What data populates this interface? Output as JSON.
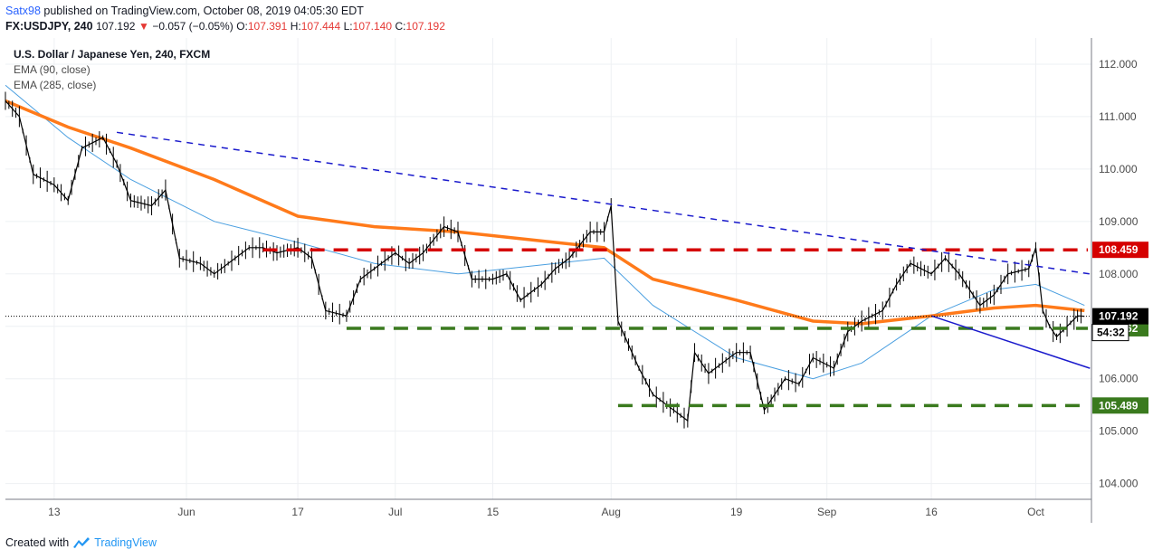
{
  "header": {
    "user": "Satx98",
    "published_text": "published on TradingView.com, October 08, 2019 04:05:30 EDT",
    "symbol": "FX:USDJPY, 240",
    "price": "107.192",
    "change": "−0.057 (−0.05%)",
    "o_label": "O:",
    "o_value": "107.391",
    "h_label": "H:",
    "h_value": "107.444",
    "l_label": "L:",
    "l_value": "107.140",
    "c_label": "C:",
    "c_value": "107.192"
  },
  "legend": {
    "instrument": "U.S. Dollar / Japanese Yen, 240, FXCM",
    "ema1": "EMA (90, close)",
    "ema2": "EMA (285, close)"
  },
  "footer": {
    "created_with": "Created with",
    "brand": "TradingView"
  },
  "colors": {
    "ema90": "#4a9fe0",
    "ema285": "#ff7a1a",
    "resistance": "#d50000",
    "support": "#3a7a1e",
    "trendline": "#1a1acc",
    "candle": "#000000"
  },
  "chart_data": {
    "type": "line",
    "title": "U.S. Dollar / Japanese Yen, 240, FXCM",
    "ylim": [
      103.7,
      112.5
    ],
    "y_ticks": [
      "112.000",
      "111.000",
      "110.000",
      "109.000",
      "108.000",
      "107.000",
      "106.000",
      "105.000",
      "104.000"
    ],
    "x_ticks": [
      "13",
      "Jun",
      "17",
      "Jul",
      "15",
      "Aug",
      "19",
      "Sep",
      "16",
      "Oct"
    ],
    "price_series": {
      "name": "FX:USDJPY, 240",
      "x": [
        "May 06",
        "May 08",
        "May 10",
        "May 13",
        "May 15",
        "May 17",
        "May 20",
        "May 22",
        "May 24",
        "May 27",
        "May 29",
        "May 31",
        "Jun 03",
        "Jun 05",
        "Jun 07",
        "Jun 10",
        "Jun 12",
        "Jun 14",
        "Jun 17",
        "Jun 19",
        "Jun 21",
        "Jun 24",
        "Jun 26",
        "Jun 28",
        "Jul 01",
        "Jul 03",
        "Jul 05",
        "Jul 08",
        "Jul 10",
        "Jul 12",
        "Jul 15",
        "Jul 17",
        "Jul 19",
        "Jul 22",
        "Jul 24",
        "Jul 26",
        "Jul 29",
        "Jul 31",
        "Aug 01",
        "Aug 02",
        "Aug 05",
        "Aug 07",
        "Aug 09",
        "Aug 12",
        "Aug 13",
        "Aug 15",
        "Aug 19",
        "Aug 21",
        "Aug 23",
        "Aug 26",
        "Aug 28",
        "Aug 30",
        "Sep 02",
        "Sep 04",
        "Sep 06",
        "Sep 09",
        "Sep 11",
        "Sep 13",
        "Sep 16",
        "Sep 18",
        "Sep 20",
        "Sep 23",
        "Sep 25",
        "Sep 27",
        "Sep 30",
        "Oct 01",
        "Oct 02",
        "Oct 03",
        "Oct 04",
        "Oct 07",
        "Oct 08"
      ],
      "values": [
        111.3,
        111.0,
        109.9,
        109.7,
        109.4,
        110.4,
        110.6,
        110.1,
        109.4,
        109.3,
        109.6,
        108.3,
        108.2,
        108.0,
        108.2,
        108.5,
        108.5,
        108.4,
        108.5,
        108.3,
        107.3,
        107.2,
        107.9,
        108.1,
        108.4,
        108.2,
        108.4,
        108.9,
        108.8,
        107.9,
        107.9,
        108.0,
        107.5,
        107.8,
        108.1,
        108.3,
        108.8,
        108.8,
        109.3,
        107.1,
        106.2,
        105.7,
        105.5,
        105.2,
        106.5,
        106.1,
        106.5,
        106.5,
        105.4,
        106.0,
        105.9,
        106.4,
        106.2,
        106.9,
        107.1,
        107.3,
        107.8,
        108.2,
        108.0,
        108.3,
        108.0,
        107.4,
        107.6,
        108.0,
        108.1,
        108.5,
        107.3,
        107.0,
        106.8,
        107.2,
        107.192
      ]
    },
    "ema90_series": {
      "name": "EMA (90, close)",
      "x": [
        "May 06",
        "May 15",
        "May 24",
        "Jun 05",
        "Jun 17",
        "Jun 28",
        "Jul 10",
        "Jul 24",
        "Jul 31",
        "Aug 07",
        "Aug 19",
        "Aug 30",
        "Sep 06",
        "Sep 16",
        "Sep 25",
        "Oct 01",
        "Oct 08"
      ],
      "values": [
        111.6,
        110.6,
        109.8,
        109.0,
        108.6,
        108.2,
        108.0,
        108.2,
        108.3,
        107.4,
        106.4,
        106.0,
        106.3,
        107.2,
        107.7,
        107.8,
        107.4
      ]
    },
    "ema285_series": {
      "name": "EMA (285, close)",
      "x": [
        "May 06",
        "May 15",
        "May 24",
        "Jun 05",
        "Jun 17",
        "Jun 28",
        "Jul 10",
        "Jul 24",
        "Jul 31",
        "Aug 07",
        "Aug 19",
        "Aug 30",
        "Sep 06",
        "Sep 16",
        "Sep 25",
        "Oct 01",
        "Oct 08"
      ],
      "values": [
        111.3,
        110.8,
        110.4,
        109.8,
        109.1,
        108.9,
        108.8,
        108.6,
        108.5,
        107.9,
        107.5,
        107.1,
        107.05,
        107.2,
        107.35,
        107.4,
        107.3
      ]
    },
    "horizontal_levels": [
      {
        "value": 108.459,
        "label": "108.459",
        "style": "resistance",
        "from": "Jun 12",
        "to": "Oct 08"
      },
      {
        "value": 106.962,
        "label": "106.962",
        "style": "support",
        "from": "Jun 24",
        "to": "Oct 08"
      },
      {
        "value": 105.489,
        "label": "105.489",
        "style": "support",
        "from": "Aug 02",
        "to": "Oct 08"
      }
    ],
    "trendlines": [
      {
        "style": "dashed",
        "from": [
          "May 22",
          110.7
        ],
        "to": [
          "Oct 08",
          108.0
        ]
      },
      {
        "style": "solid",
        "from": [
          "Sep 16",
          107.2
        ],
        "to": [
          "Oct 08",
          106.2
        ]
      }
    ],
    "last_price": {
      "value": 107.192,
      "label": "107.192",
      "countdown": "54:32"
    }
  }
}
